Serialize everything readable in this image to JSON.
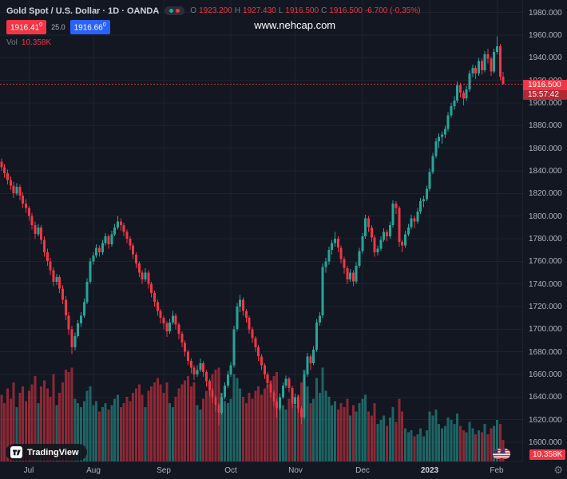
{
  "header": {
    "symbol_title": "Gold Spot / U.S. Dollar · 1D · OANDA",
    "ohlc": {
      "open_label": "O",
      "open": "1923.200",
      "high_label": "H",
      "high": "1927.430",
      "low_label": "L",
      "low": "1916.500",
      "close_label": "C",
      "close": "1916.500",
      "change": "-6.700 (-0.35%)"
    },
    "bid": "1916.41",
    "bid_sup": "0",
    "spread": "25.0",
    "ask": "1916.66",
    "ask_sup": "0",
    "vol_label": "Vol",
    "vol_value": "10.358K"
  },
  "watermark": "www.nehcap.com",
  "footer": {
    "logo_text": "TradingView"
  },
  "price_scale": {
    "last_price_label": "1916.500",
    "countdown": "15:57:42",
    "volume_badge": "10.358K"
  },
  "icons": {
    "settings_gear": "⚙"
  },
  "colors": {
    "background": "#131722",
    "up": "#26a69a",
    "down": "#f23645",
    "volume_up": "rgba(38,166,154,0.55)",
    "volume_down": "rgba(242,54,69,0.55)",
    "grid": "#1e222d",
    "accent_blue": "#2962ff",
    "text": "#d1d4dc",
    "text_dim": "#787b86"
  },
  "chart_data": {
    "type": "candlestick",
    "title": "Gold Spot / U.S. Dollar",
    "timeframe": "1D",
    "exchange": "OANDA",
    "last_price": 1916.5,
    "last_ohlc": {
      "open": 1923.2,
      "high": 1927.43,
      "low": 1916.5,
      "close": 1916.5,
      "change": -6.7,
      "change_pct": -0.35,
      "volume_k": 10.358
    },
    "grid": true,
    "right_margin_slots": 6,
    "volume_scale_max": 46,
    "volume_unit": "K",
    "price_axis": {
      "min_visible": 1583,
      "max_visible": 1991,
      "tick_step": 20,
      "tick_labels": [
        "1980.000",
        "1960.000",
        "1940.000",
        "1920.000",
        "1900.000",
        "1880.000",
        "1860.000",
        "1840.000",
        "1820.000",
        "1800.000",
        "1780.000",
        "1760.000",
        "1740.000",
        "1720.000",
        "1700.000",
        "1680.000",
        "1660.000",
        "1640.000",
        "1620.000",
        "1600.000"
      ]
    },
    "time_axis_labels": [
      {
        "label": "Jul",
        "index": 9
      },
      {
        "label": "Aug",
        "index": 30
      },
      {
        "label": "Sep",
        "index": 53
      },
      {
        "label": "Oct",
        "index": 75
      },
      {
        "label": "Nov",
        "index": 96
      },
      {
        "label": "Dec",
        "index": 118
      },
      {
        "label": "2023",
        "index": 140,
        "year": true
      },
      {
        "label": "Feb",
        "index": 162
      }
    ],
    "candles_format": [
      "open",
      "high",
      "low",
      "close",
      "volume_k"
    ],
    "candles": [
      [
        1848,
        1851,
        1840,
        1843,
        32
      ],
      [
        1843,
        1846,
        1834,
        1838,
        28
      ],
      [
        1838,
        1841,
        1828,
        1832,
        35
      ],
      [
        1832,
        1835,
        1823,
        1827,
        30
      ],
      [
        1827,
        1830,
        1816,
        1820,
        38
      ],
      [
        1820,
        1829,
        1818,
        1826,
        26
      ],
      [
        1826,
        1828,
        1814,
        1818,
        33
      ],
      [
        1818,
        1821,
        1807,
        1811,
        36
      ],
      [
        1811,
        1815,
        1803,
        1807,
        29
      ],
      [
        1807,
        1809,
        1796,
        1800,
        34
      ],
      [
        1800,
        1803,
        1788,
        1792,
        37
      ],
      [
        1792,
        1795,
        1780,
        1784,
        41
      ],
      [
        1784,
        1793,
        1782,
        1790,
        28
      ],
      [
        1790,
        1792,
        1775,
        1779,
        36
      ],
      [
        1779,
        1782,
        1764,
        1768,
        39
      ],
      [
        1768,
        1771,
        1756,
        1760,
        35
      ],
      [
        1760,
        1763,
        1748,
        1752,
        31
      ],
      [
        1752,
        1755,
        1738,
        1742,
        42
      ],
      [
        1742,
        1749,
        1739,
        1746,
        27
      ],
      [
        1746,
        1748,
        1732,
        1736,
        33
      ],
      [
        1736,
        1739,
        1722,
        1726,
        38
      ],
      [
        1726,
        1729,
        1708,
        1712,
        44
      ],
      [
        1712,
        1715,
        1695,
        1700,
        43
      ],
      [
        1700,
        1703,
        1678,
        1684,
        45
      ],
      [
        1684,
        1697,
        1681,
        1694,
        30
      ],
      [
        1694,
        1708,
        1692,
        1705,
        28
      ],
      [
        1705,
        1715,
        1702,
        1712,
        26
      ],
      [
        1712,
        1727,
        1710,
        1724,
        29
      ],
      [
        1724,
        1745,
        1722,
        1742,
        34
      ],
      [
        1742,
        1763,
        1740,
        1760,
        36
      ],
      [
        1760,
        1768,
        1757,
        1765,
        27
      ],
      [
        1765,
        1775,
        1763,
        1772,
        29
      ],
      [
        1772,
        1774,
        1764,
        1768,
        24
      ],
      [
        1768,
        1779,
        1766,
        1776,
        26
      ],
      [
        1776,
        1785,
        1774,
        1782,
        28
      ],
      [
        1782,
        1784,
        1771,
        1775,
        25
      ],
      [
        1775,
        1787,
        1773,
        1784,
        27
      ],
      [
        1784,
        1793,
        1782,
        1790,
        30
      ],
      [
        1790,
        1800,
        1788,
        1795,
        32
      ],
      [
        1795,
        1798,
        1787,
        1792,
        26
      ],
      [
        1792,
        1794,
        1782,
        1786,
        28
      ],
      [
        1786,
        1788,
        1776,
        1780,
        31
      ],
      [
        1780,
        1782,
        1770,
        1774,
        29
      ],
      [
        1774,
        1776,
        1762,
        1766,
        33
      ],
      [
        1766,
        1768,
        1754,
        1758,
        35
      ],
      [
        1758,
        1760,
        1746,
        1750,
        37
      ],
      [
        1750,
        1752,
        1740,
        1744,
        32
      ],
      [
        1744,
        1754,
        1742,
        1750,
        26
      ],
      [
        1750,
        1752,
        1736,
        1740,
        34
      ],
      [
        1740,
        1742,
        1728,
        1732,
        36
      ],
      [
        1732,
        1734,
        1720,
        1724,
        38
      ],
      [
        1724,
        1726,
        1712,
        1716,
        40
      ],
      [
        1716,
        1718,
        1705,
        1710,
        37
      ],
      [
        1710,
        1712,
        1700,
        1705,
        33
      ],
      [
        1705,
        1707,
        1693,
        1698,
        38
      ],
      [
        1698,
        1709,
        1696,
        1706,
        28
      ],
      [
        1706,
        1716,
        1704,
        1712,
        26
      ],
      [
        1712,
        1714,
        1700,
        1704,
        31
      ],
      [
        1704,
        1706,
        1691,
        1696,
        35
      ],
      [
        1696,
        1698,
        1684,
        1688,
        37
      ],
      [
        1688,
        1690,
        1676,
        1680,
        39
      ],
      [
        1680,
        1682,
        1668,
        1672,
        41
      ],
      [
        1672,
        1674,
        1661,
        1666,
        36
      ],
      [
        1666,
        1668,
        1655,
        1660,
        38
      ],
      [
        1660,
        1668,
        1658,
        1664,
        27
      ],
      [
        1664,
        1674,
        1662,
        1670,
        25
      ],
      [
        1670,
        1672,
        1658,
        1662,
        30
      ],
      [
        1662,
        1664,
        1649,
        1654,
        34
      ],
      [
        1654,
        1656,
        1641,
        1646,
        39
      ],
      [
        1646,
        1648,
        1635,
        1640,
        42
      ],
      [
        1640,
        1642,
        1627,
        1633,
        44
      ],
      [
        1633,
        1635,
        1615,
        1626,
        45
      ],
      [
        1626,
        1643,
        1624,
        1640,
        33
      ],
      [
        1640,
        1653,
        1638,
        1650,
        29
      ],
      [
        1650,
        1663,
        1648,
        1660,
        28
      ],
      [
        1660,
        1671,
        1658,
        1668,
        30
      ],
      [
        1668,
        1703,
        1666,
        1700,
        42
      ],
      [
        1700,
        1723,
        1698,
        1720,
        40
      ],
      [
        1720,
        1730,
        1715,
        1726,
        35
      ],
      [
        1726,
        1728,
        1712,
        1716,
        31
      ],
      [
        1716,
        1718,
        1706,
        1710,
        28
      ],
      [
        1710,
        1712,
        1696,
        1700,
        33
      ],
      [
        1700,
        1702,
        1688,
        1692,
        30
      ],
      [
        1692,
        1694,
        1680,
        1684,
        34
      ],
      [
        1684,
        1686,
        1672,
        1676,
        36
      ],
      [
        1676,
        1678,
        1664,
        1668,
        32
      ],
      [
        1668,
        1670,
        1656,
        1660,
        35
      ],
      [
        1660,
        1662,
        1648,
        1652,
        37
      ],
      [
        1652,
        1654,
        1640,
        1644,
        39
      ],
      [
        1644,
        1646,
        1632,
        1636,
        41
      ],
      [
        1636,
        1638,
        1622,
        1630,
        43
      ],
      [
        1630,
        1643,
        1628,
        1640,
        29
      ],
      [
        1640,
        1653,
        1638,
        1650,
        27
      ],
      [
        1650,
        1659,
        1648,
        1656,
        25
      ],
      [
        1656,
        1658,
        1644,
        1648,
        30
      ],
      [
        1648,
        1650,
        1630,
        1634,
        35
      ],
      [
        1634,
        1643,
        1632,
        1640,
        27
      ],
      [
        1640,
        1642,
        1626,
        1630,
        32
      ],
      [
        1630,
        1632,
        1616,
        1622,
        38
      ],
      [
        1622,
        1663,
        1620,
        1660,
        44
      ],
      [
        1660,
        1679,
        1658,
        1676,
        36
      ],
      [
        1676,
        1678,
        1664,
        1670,
        28
      ],
      [
        1670,
        1685,
        1668,
        1682,
        30
      ],
      [
        1682,
        1709,
        1680,
        1706,
        40
      ],
      [
        1706,
        1715,
        1703,
        1712,
        33
      ],
      [
        1712,
        1758,
        1710,
        1755,
        45
      ],
      [
        1755,
        1763,
        1750,
        1760,
        34
      ],
      [
        1760,
        1773,
        1757,
        1770,
        31
      ],
      [
        1770,
        1779,
        1766,
        1776,
        27
      ],
      [
        1776,
        1786,
        1773,
        1780,
        29
      ],
      [
        1780,
        1782,
        1768,
        1772,
        25
      ],
      [
        1772,
        1774,
        1758,
        1762,
        28
      ],
      [
        1762,
        1764,
        1749,
        1754,
        26
      ],
      [
        1754,
        1756,
        1740,
        1744,
        30
      ],
      [
        1744,
        1753,
        1742,
        1750,
        22
      ],
      [
        1750,
        1752,
        1738,
        1742,
        27
      ],
      [
        1742,
        1759,
        1740,
        1756,
        24
      ],
      [
        1756,
        1772,
        1754,
        1769,
        28
      ],
      [
        1769,
        1785,
        1767,
        1782,
        30
      ],
      [
        1782,
        1801,
        1780,
        1798,
        32
      ],
      [
        1798,
        1800,
        1786,
        1790,
        24
      ],
      [
        1790,
        1792,
        1777,
        1781,
        22
      ],
      [
        1781,
        1783,
        1764,
        1768,
        28
      ],
      [
        1768,
        1774,
        1765,
        1771,
        18
      ],
      [
        1771,
        1782,
        1769,
        1779,
        20
      ],
      [
        1779,
        1789,
        1777,
        1786,
        22
      ],
      [
        1786,
        1788,
        1778,
        1782,
        17
      ],
      [
        1782,
        1795,
        1780,
        1792,
        21
      ],
      [
        1792,
        1814,
        1790,
        1811,
        26
      ],
      [
        1811,
        1813,
        1802,
        1807,
        19
      ],
      [
        1807,
        1809,
        1773,
        1777,
        30
      ],
      [
        1777,
        1779,
        1768,
        1774,
        24
      ],
      [
        1774,
        1787,
        1772,
        1784,
        16
      ],
      [
        1784,
        1793,
        1782,
        1790,
        14
      ],
      [
        1790,
        1801,
        1788,
        1798,
        15
      ],
      [
        1798,
        1800,
        1789,
        1795,
        12
      ],
      [
        1795,
        1807,
        1793,
        1804,
        13
      ],
      [
        1804,
        1816,
        1802,
        1813,
        16
      ],
      [
        1813,
        1818,
        1808,
        1815,
        12
      ],
      [
        1815,
        1827,
        1813,
        1824,
        15
      ],
      [
        1824,
        1842,
        1822,
        1839,
        24
      ],
      [
        1839,
        1856,
        1837,
        1853,
        22
      ],
      [
        1853,
        1869,
        1851,
        1866,
        25
      ],
      [
        1866,
        1873,
        1860,
        1870,
        18
      ],
      [
        1870,
        1875,
        1864,
        1872,
        16
      ],
      [
        1872,
        1880,
        1869,
        1877,
        17
      ],
      [
        1877,
        1892,
        1875,
        1889,
        21
      ],
      [
        1889,
        1900,
        1887,
        1897,
        20
      ],
      [
        1897,
        1906,
        1894,
        1902,
        18
      ],
      [
        1902,
        1919,
        1900,
        1916,
        23
      ],
      [
        1916,
        1918,
        1905,
        1909,
        17
      ],
      [
        1909,
        1911,
        1898,
        1904,
        15
      ],
      [
        1904,
        1915,
        1902,
        1912,
        14
      ],
      [
        1912,
        1929,
        1910,
        1926,
        19
      ],
      [
        1926,
        1934,
        1923,
        1931,
        16
      ],
      [
        1931,
        1933,
        1921,
        1926,
        13
      ],
      [
        1926,
        1940,
        1924,
        1937,
        15
      ],
      [
        1937,
        1939,
        1925,
        1929,
        14
      ],
      [
        1929,
        1946,
        1927,
        1943,
        18
      ],
      [
        1943,
        1948,
        1935,
        1939,
        13
      ],
      [
        1939,
        1941,
        1924,
        1928,
        16
      ],
      [
        1928,
        1948,
        1926,
        1945,
        17
      ],
      [
        1945,
        1959,
        1943,
        1950,
        20
      ],
      [
        1950,
        1952,
        1920,
        1923.2,
        18
      ],
      [
        1923.2,
        1927.43,
        1916.5,
        1916.5,
        10.358
      ]
    ]
  }
}
